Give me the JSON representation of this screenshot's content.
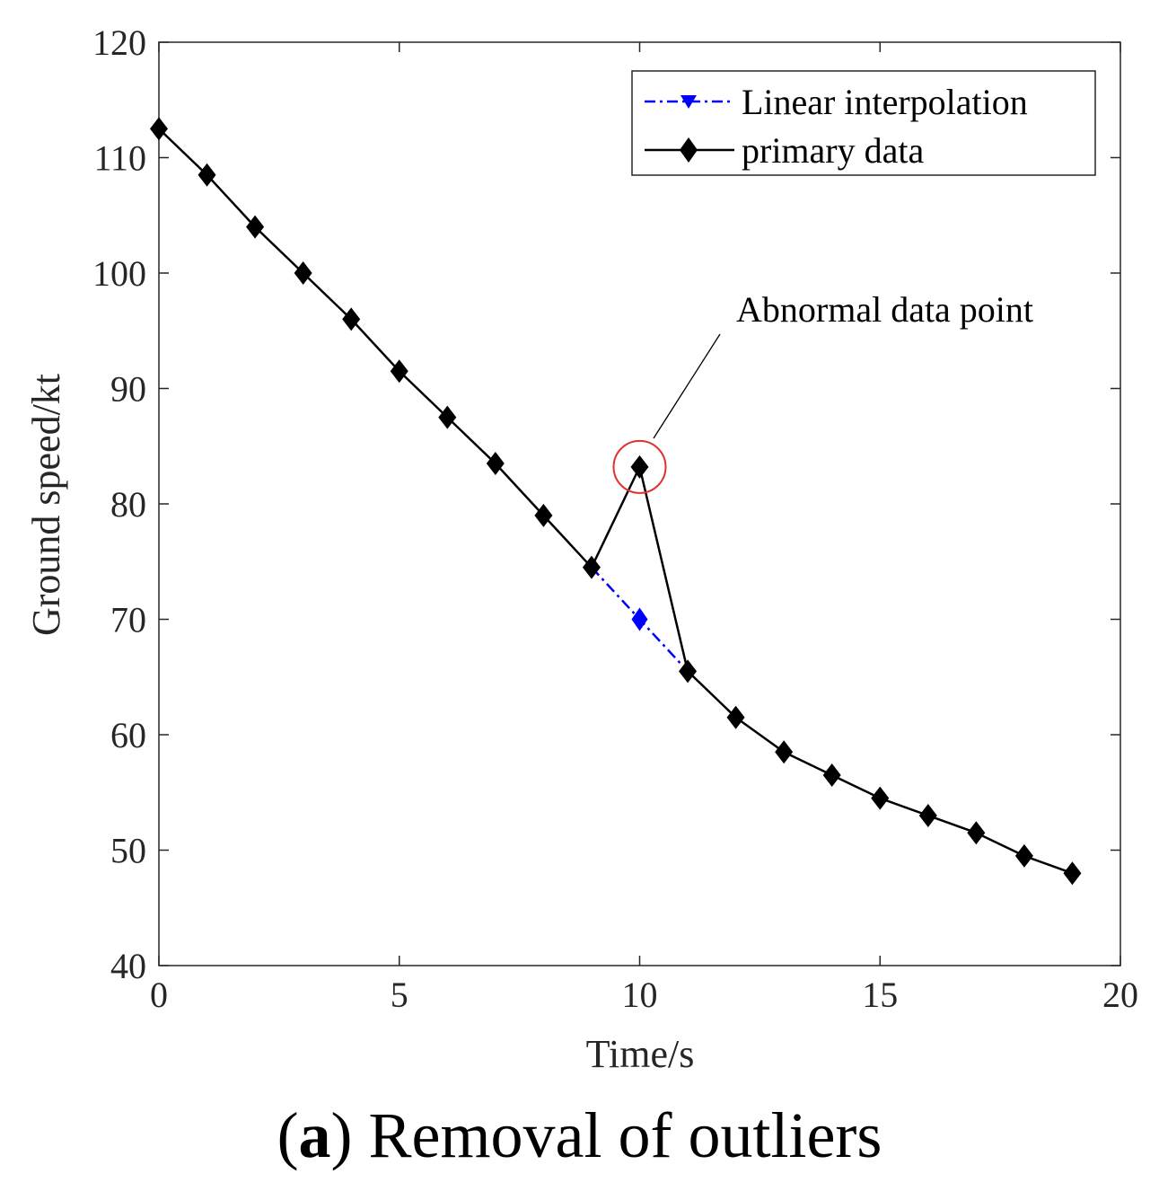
{
  "chart_data": {
    "type": "line",
    "xlabel": "Time/s",
    "ylabel": "Ground speed/kt",
    "xlim": [
      0,
      20
    ],
    "ylim": [
      40,
      120
    ],
    "xticks": [
      0,
      5,
      10,
      15,
      20
    ],
    "yticks": [
      40,
      50,
      60,
      70,
      80,
      90,
      100,
      110,
      120
    ],
    "grid": false,
    "legend_position": "top-right",
    "series": [
      {
        "name": "Linear interpolation",
        "color": "#0000ff",
        "line_style": "dash-dot",
        "marker": "diamond",
        "x": [
          9,
          10,
          11
        ],
        "y": [
          74.5,
          70,
          65.5
        ]
      },
      {
        "name": "primary data",
        "color": "#000000",
        "line_style": "solid",
        "marker": "diamond",
        "x": [
          0,
          1,
          2,
          3,
          4,
          5,
          6,
          7,
          8,
          9,
          10,
          11,
          12,
          13,
          14,
          15,
          16,
          17,
          18,
          19
        ],
        "y": [
          112.5,
          108.5,
          104,
          100,
          96,
          91.5,
          87.5,
          83.5,
          79,
          74.5,
          83.2,
          65.5,
          61.5,
          58.5,
          56.5,
          54.5,
          53,
          51.5,
          49.5,
          48
        ]
      }
    ],
    "annotations": [
      {
        "text": "Abnormal data point",
        "x": 10,
        "y": 83.2,
        "circle_color": "#e03030"
      }
    ]
  },
  "caption": {
    "letter": "a",
    "text": "Removal of outliers"
  }
}
